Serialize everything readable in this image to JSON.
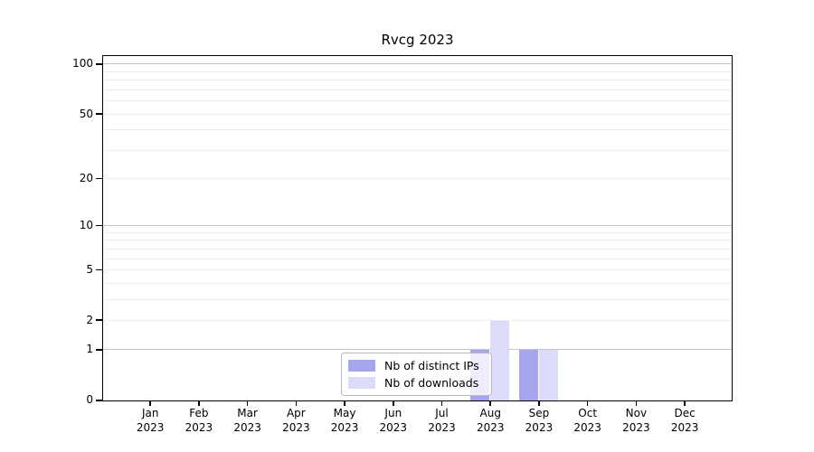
{
  "title": "Rvcg 2023",
  "legend": {
    "items": [
      {
        "label": "Nb of distinct IPs",
        "color": "#a6a6f0"
      },
      {
        "label": "Nb of downloads",
        "color": "#dcdcfa"
      }
    ]
  },
  "chart_data": {
    "type": "bar",
    "title": "Rvcg 2023",
    "scale": "log1p",
    "categories": [
      "Jan 2023",
      "Feb 2023",
      "Mar 2023",
      "Apr 2023",
      "May 2023",
      "Jun 2023",
      "Jul 2023",
      "Aug 2023",
      "Sep 2023",
      "Oct 2023",
      "Nov 2023",
      "Dec 2023"
    ],
    "series": [
      {
        "name": "Nb of distinct IPs",
        "color": "#a6a6f0",
        "values": [
          0,
          0,
          0,
          0,
          0,
          0,
          0,
          1,
          1,
          0,
          0,
          0
        ]
      },
      {
        "name": "Nb of downloads",
        "color": "#dcdcfa",
        "values": [
          0,
          0,
          0,
          0,
          0,
          0,
          0,
          2,
          1,
          0,
          0,
          0
        ]
      }
    ],
    "y_ticks": [
      0,
      1,
      2,
      5,
      10,
      20,
      50,
      100
    ],
    "major_gridlines": [
      1,
      10,
      100
    ],
    "minor_gridlines": [
      2,
      3,
      4,
      5,
      6,
      7,
      8,
      9,
      20,
      30,
      40,
      50,
      60,
      70,
      80,
      90
    ],
    "ylim": [
      0,
      100
    ],
    "xlabel": "",
    "ylabel": "",
    "grid": true,
    "legend_position": "lower center, inside plot"
  },
  "colors": {
    "major_gridline": "#c6c6c6",
    "minor_gridline": "#ededed",
    "axis": "#000000",
    "background": "#ffffff"
  }
}
